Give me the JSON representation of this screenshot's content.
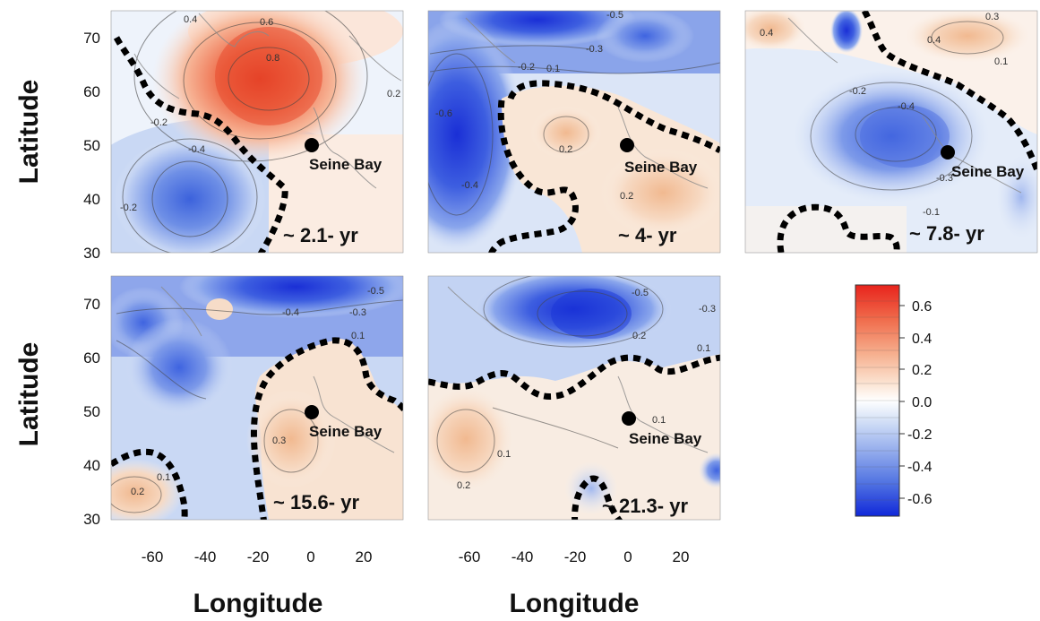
{
  "figure": {
    "y_axis_title": "Latitude",
    "x_axis_title": "Longitude",
    "lat_ticks": [
      "70",
      "60",
      "50",
      "40",
      "30"
    ],
    "lon_ticks": [
      "-60",
      "-40",
      "-20",
      "0",
      "20"
    ],
    "site_name": "Seine Bay",
    "colors": {
      "negative": "#1f3ee6",
      "positive": "#e8301e",
      "neutral": "#ffffff",
      "front_line": "#000000"
    },
    "land_outline": "gray coastline outlines"
  },
  "panels": [
    {
      "id": "2.1yr",
      "period_label": "~ 2.1- yr",
      "contour_labels": [
        "0.4",
        "0.6",
        "0.8",
        "0.2",
        "-0.2",
        "-0.4",
        "-0.2"
      ]
    },
    {
      "id": "4yr",
      "period_label": "~ 4- yr",
      "contour_labels": [
        "-0.5",
        "-0.3",
        "-0.2",
        "0.1",
        "0.2",
        "-0.6",
        "0.2",
        "-0.4"
      ]
    },
    {
      "id": "7.8yr",
      "period_label": "~ 7.8- yr",
      "contour_labels": [
        "0.4",
        "0.3",
        "0.4",
        "0.1",
        "-0.2",
        "-0.4",
        "-0.3",
        "-0.1"
      ]
    },
    {
      "id": "15.6yr",
      "period_label": "~ 15.6- yr",
      "contour_labels": [
        "-0.5",
        "-0.4",
        "-0.3",
        "0.1",
        "0.3",
        "0.2",
        "0.1"
      ]
    },
    {
      "id": "21.3yr",
      "period_label": "~ 21.3- yr",
      "contour_labels": [
        "-0.5",
        "-0.3",
        "0.2",
        "0.1",
        "0.1",
        "0.2",
        "0.1"
      ]
    }
  ],
  "colorbar": {
    "ticks": [
      "0.6",
      "0.4",
      "0.2",
      "0.0",
      "-0.2",
      "-0.4",
      "-0.6"
    ],
    "range": [
      -0.7,
      0.7
    ]
  }
}
